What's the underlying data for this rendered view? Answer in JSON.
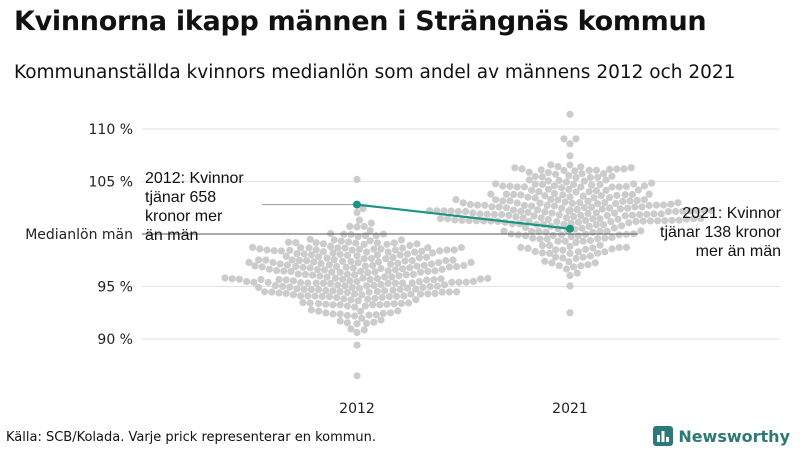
{
  "title": "Kvinnorna ikapp männen i Strängnäs kommun",
  "subtitle": "Kommunanställda kvinnors medianlön som andel av männens 2012 och 2021",
  "source": "Källa: SCB/Kolada. Varje prick representerar en kommun.",
  "brand": "Newsworthy",
  "colors": {
    "dots": "#cccccc",
    "highlight": "#1a9580",
    "grid": "#e2e2e2",
    "refline": "#555555",
    "brand": "#2b7a78"
  },
  "chart_data": {
    "type": "scatter",
    "subtype": "beeswarm",
    "categories": [
      "2012",
      "2021"
    ],
    "y_ticks": [
      {
        "value": 90,
        "label": "90 %"
      },
      {
        "value": 95,
        "label": "95 %"
      },
      {
        "value": 105,
        "label": "105 %"
      },
      {
        "value": 110,
        "label": "110 %"
      }
    ],
    "reference_line": {
      "value": 100,
      "label": "Medianlön män"
    },
    "ylim": [
      86,
      112
    ],
    "grid": true,
    "distributions": [
      {
        "category": "2012",
        "n": 290,
        "mean": 96.2,
        "sd": 2.4,
        "min": 86.5,
        "max": 105.2
      },
      {
        "category": "2021",
        "n": 290,
        "mean": 102.0,
        "sd": 2.6,
        "min": 92.5,
        "max": 111.4
      }
    ],
    "highlight": {
      "name": "Strängnäs kommun",
      "points": [
        {
          "x": "2012",
          "y": 102.8
        },
        {
          "x": "2021",
          "y": 100.5
        }
      ]
    },
    "annotations": [
      {
        "category": "2012",
        "side": "left",
        "lines": [
          "2012: Kvinnor",
          "tjänar 658",
          "kronor mer",
          "än män"
        ]
      },
      {
        "category": "2021",
        "side": "right",
        "lines": [
          "2021: Kvinnor",
          "tjänar 138 kronor",
          "mer än män"
        ]
      }
    ]
  }
}
